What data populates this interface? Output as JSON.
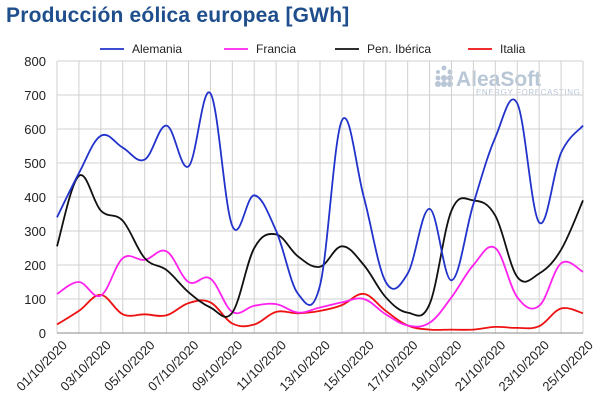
{
  "title": "Producción eólica europea [GWh]",
  "watermark": {
    "brand": "AleaSoft",
    "tagline": "ENERGY FORECASTING",
    "color": "#b8c6d6"
  },
  "chart_data": {
    "type": "line",
    "ylim": [
      0,
      800
    ],
    "yticks": [
      0,
      100,
      200,
      300,
      400,
      500,
      600,
      700,
      800
    ],
    "x": [
      "01/10/2020",
      "02/10/2020",
      "03/10/2020",
      "04/10/2020",
      "05/10/2020",
      "06/10/2020",
      "07/10/2020",
      "08/10/2020",
      "09/10/2020",
      "10/10/2020",
      "11/10/2020",
      "12/10/2020",
      "13/10/2020",
      "14/10/2020",
      "15/10/2020",
      "16/10/2020",
      "17/10/2020",
      "18/10/2020",
      "19/10/2020",
      "20/10/2020",
      "21/10/2020",
      "22/10/2020",
      "23/10/2020",
      "24/10/2020",
      "25/10/2020"
    ],
    "xtick_labels": [
      "01/10/2020",
      "03/10/2020",
      "05/10/2020",
      "07/10/2020",
      "09/10/2020",
      "11/10/2020",
      "13/10/2020",
      "15/10/2020",
      "17/10/2020",
      "19/10/2020",
      "21/10/2020",
      "23/10/2020",
      "25/10/2020"
    ],
    "grid": true,
    "legend_position": "top",
    "series": [
      {
        "name": "Alemania",
        "color": "#2233cc",
        "values": [
          340,
          470,
          580,
          545,
          510,
          610,
          490,
          705,
          315,
          405,
          300,
          115,
          140,
          625,
          400,
          150,
          175,
          365,
          155,
          380,
          575,
          675,
          325,
          530,
          610
        ]
      },
      {
        "name": "Francia",
        "color": "#ff22ee",
        "values": [
          115,
          150,
          110,
          220,
          215,
          240,
          150,
          160,
          62,
          80,
          85,
          60,
          75,
          90,
          100,
          55,
          22,
          30,
          105,
          200,
          250,
          105,
          80,
          205,
          180
        ]
      },
      {
        "name": "Pen. Ibérica",
        "color": "#111111",
        "values": [
          255,
          462,
          360,
          330,
          220,
          185,
          120,
          75,
          60,
          250,
          290,
          225,
          195,
          255,
          200,
          105,
          60,
          85,
          360,
          390,
          345,
          165,
          175,
          245,
          390
        ]
      },
      {
        "name": "Italia",
        "color": "#ee1111",
        "values": [
          25,
          65,
          112,
          55,
          55,
          52,
          88,
          90,
          28,
          25,
          62,
          58,
          65,
          82,
          115,
          65,
          22,
          10,
          10,
          10,
          18,
          15,
          20,
          72,
          58
        ]
      }
    ]
  }
}
